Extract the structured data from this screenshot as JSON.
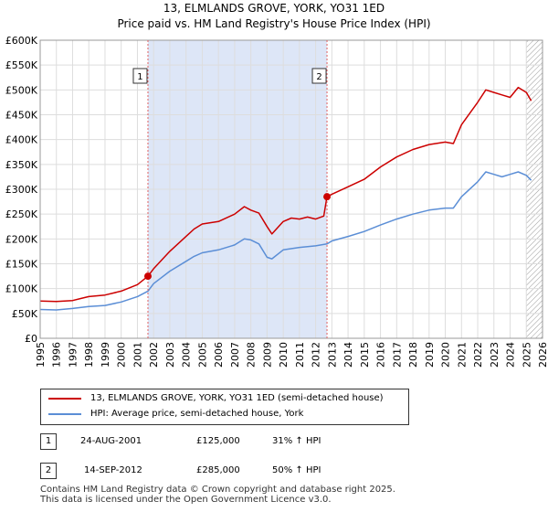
{
  "header": {
    "title": "13, ELMLANDS GROVE, YORK, YO31 1ED",
    "subtitle": "Price paid vs. HM Land Registry's House Price Index (HPI)"
  },
  "colors": {
    "property_line": "#cc0000",
    "hpi_line": "#5b8ed6",
    "shade": "#dde6f7",
    "grid": "#dddddd",
    "marker_line": "#e06060"
  },
  "chart_data": {
    "type": "line",
    "xlim": [
      1995,
      2026
    ],
    "ylim": [
      0,
      600000
    ],
    "grid": true,
    "x_ticks": [
      "1995",
      "1996",
      "1997",
      "1998",
      "1999",
      "2000",
      "2001",
      "2002",
      "2003",
      "2004",
      "2005",
      "2006",
      "2007",
      "2008",
      "2009",
      "2010",
      "2011",
      "2012",
      "2013",
      "2014",
      "2015",
      "2016",
      "2017",
      "2018",
      "2019",
      "2020",
      "2021",
      "2022",
      "2023",
      "2024",
      "2025",
      "2026"
    ],
    "y_ticks": [
      {
        "value": 0,
        "label": "£0"
      },
      {
        "value": 50000,
        "label": "£50K"
      },
      {
        "value": 100000,
        "label": "£100K"
      },
      {
        "value": 150000,
        "label": "£150K"
      },
      {
        "value": 200000,
        "label": "£200K"
      },
      {
        "value": 250000,
        "label": "£250K"
      },
      {
        "value": 300000,
        "label": "£300K"
      },
      {
        "value": 350000,
        "label": "£350K"
      },
      {
        "value": 400000,
        "label": "£400K"
      },
      {
        "value": 450000,
        "label": "£450K"
      },
      {
        "value": 500000,
        "label": "£500K"
      },
      {
        "value": 550000,
        "label": "£550K"
      },
      {
        "value": 600000,
        "label": "£600K"
      }
    ],
    "shaded_region": [
      2001.65,
      2012.7
    ],
    "hatched_from": 2025.0,
    "series": [
      {
        "name": "13, ELMLANDS GROVE, YORK, YO31 1ED (semi-detached house)",
        "x": [
          1995,
          1996,
          1997,
          1997.5,
          1998,
          1999,
          2000,
          2001,
          2001.65,
          2002,
          2003,
          2004,
          2004.5,
          2005,
          2006,
          2007,
          2007.6,
          2008,
          2008.5,
          2009,
          2009.3,
          2010,
          2010.5,
          2011,
          2011.5,
          2012,
          2012.5,
          2012.7,
          2013,
          2014,
          2015,
          2016,
          2017,
          2018,
          2019,
          2020,
          2020.5,
          2021,
          2022,
          2022.5,
          2023,
          2023.5,
          2024,
          2024.5,
          2025,
          2025.3
        ],
        "y": [
          75000,
          74000,
          76000,
          80000,
          84000,
          87000,
          95000,
          108000,
          125000,
          140000,
          175000,
          205000,
          220000,
          230000,
          235000,
          250000,
          265000,
          258000,
          252000,
          225000,
          210000,
          235000,
          242000,
          240000,
          244000,
          240000,
          246000,
          285000,
          290000,
          305000,
          320000,
          345000,
          365000,
          380000,
          390000,
          395000,
          392000,
          430000,
          475000,
          500000,
          495000,
          490000,
          485000,
          505000,
          495000,
          478000
        ]
      },
      {
        "name": "HPI: Average price, semi-detached house, York",
        "x": [
          1995,
          1996,
          1997,
          1998,
          1999,
          2000,
          2001,
          2001.65,
          2002,
          2003,
          2004,
          2004.5,
          2005,
          2006,
          2007,
          2007.6,
          2008,
          2008.5,
          2009,
          2009.3,
          2010,
          2011,
          2012,
          2012.7,
          2013,
          2014,
          2015,
          2016,
          2017,
          2018,
          2019,
          2020,
          2020.5,
          2021,
          2022,
          2022.5,
          2023,
          2023.5,
          2024,
          2024.5,
          2025,
          2025.3
        ],
        "y": [
          58000,
          57000,
          60000,
          64000,
          66000,
          73000,
          84000,
          95000,
          110000,
          135000,
          155000,
          165000,
          172000,
          178000,
          188000,
          200000,
          198000,
          190000,
          163000,
          160000,
          178000,
          183000,
          186000,
          190000,
          196000,
          205000,
          215000,
          228000,
          240000,
          250000,
          258000,
          262000,
          262000,
          285000,
          315000,
          335000,
          330000,
          325000,
          330000,
          335000,
          328000,
          318000
        ]
      }
    ],
    "transactions": [
      {
        "label": "1",
        "x": 2001.65,
        "y": 125000
      },
      {
        "label": "2",
        "x": 2012.7,
        "y": 285000
      }
    ]
  },
  "legend": {
    "items": [
      {
        "label": "13, ELMLANDS GROVE, YORK, YO31 1ED (semi-detached house)"
      },
      {
        "label": "HPI: Average price, semi-detached house, York"
      }
    ]
  },
  "transactions_table": [
    {
      "num": "1",
      "date": "24-AUG-2001",
      "price": "£125,000",
      "hpi": "31% ↑ HPI"
    },
    {
      "num": "2",
      "date": "14-SEP-2012",
      "price": "£285,000",
      "hpi": "50% ↑ HPI"
    }
  ],
  "footer": {
    "line1": "Contains HM Land Registry data © Crown copyright and database right 2025.",
    "line2": "This data is licensed under the Open Government Licence v3.0."
  }
}
